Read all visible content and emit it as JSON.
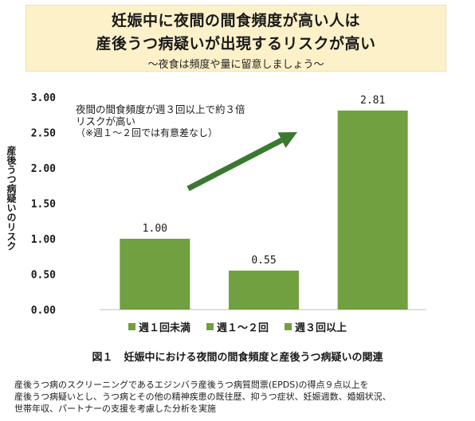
{
  "banner": {
    "line1": "妊娠中に夜間の間食頻度が高い人は",
    "line2": "産後うつ病疑いが出現するリスクが高い",
    "subtitle": "～夜食は頻度や量に留意しましょう～"
  },
  "annotation": {
    "line1": "夜間の間食頻度が週３回以上で約３倍",
    "line2": "リスクが高い",
    "line3": "（※週１～２回では有意差なし）"
  },
  "caption": {
    "number": "図１",
    "text": "妊娠中における夜間の間食頻度と産後うつ病疑いの関連"
  },
  "footnote": {
    "line1": "産後うつ病のスクリーニングであるエジンバラ産後うつ病質問票(EPDS)の得点９点以上を",
    "line2": "産後うつ病疑いとし、うつ病とその他の精神疾患の既往歴、抑うつ症状、妊娠週数、婚姻状況、",
    "line3": "世帯年収、パートナーの支援を考慮した分析を実施"
  },
  "colors": {
    "bar": "#70a040",
    "arrow": "#3a7a30",
    "banner_bg": "#fdf1c9"
  },
  "chart_data": {
    "type": "bar",
    "categories": [
      "週１回未満",
      "週１～２回",
      "週３回以上"
    ],
    "values": [
      1.0,
      0.55,
      2.81
    ],
    "value_labels": [
      "1.00",
      "0.55",
      "2.81"
    ],
    "ylabel": "産後うつ病疑いのリスク",
    "ylim": [
      0,
      3
    ],
    "yticks": [
      "0.00",
      "0.50",
      "1.00",
      "1.50",
      "2.00",
      "2.50",
      "3.00"
    ],
    "grid": false,
    "legend_position": "bottom"
  }
}
